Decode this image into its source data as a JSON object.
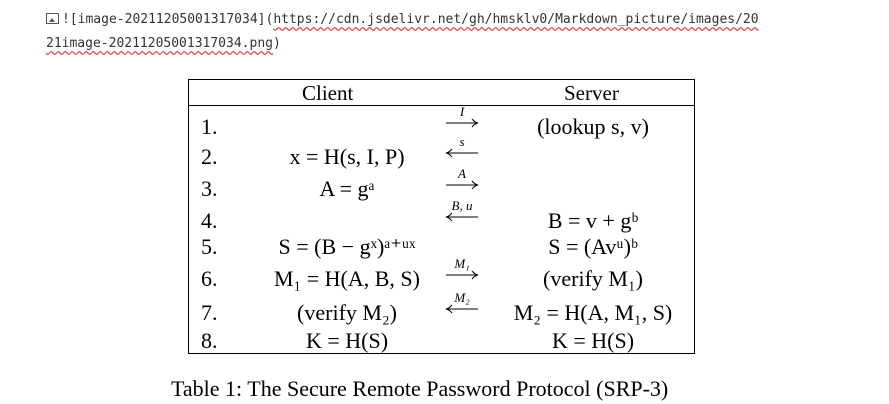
{
  "markdown": {
    "icon": "broken-image-icon",
    "line1_prefix": "![image-20211205001317034](",
    "line1_link": "https://cdn.jsdelivr.net/gh/hmsklv0/Markdown_picture/images/20",
    "line2_link": "21image-20211205001317034.png",
    "line2_suffix": ")"
  },
  "table": {
    "headers": {
      "client": "Client",
      "server": "Server"
    },
    "rows": [
      {
        "num": "1.",
        "client": "",
        "arrow_label": "I",
        "direction": "right",
        "server": "(lookup s, v)"
      },
      {
        "num": "2.",
        "client": "x = H(s, I, P)",
        "arrow_label": "s",
        "direction": "left",
        "server": ""
      },
      {
        "num": "3.",
        "client": "A = gᵃ",
        "arrow_label": "A",
        "direction": "right",
        "server": ""
      },
      {
        "num": "4.",
        "client": "",
        "arrow_label": "B, u",
        "direction": "left",
        "server": "B = v + gᵇ"
      },
      {
        "num": "5.",
        "client": "S = (B − gˣ)ᵃ⁺ᵘˣ",
        "arrow_label": "",
        "direction": "none",
        "server": "S = (Avᵘ)ᵇ"
      },
      {
        "num": "6.",
        "client": "M₁ = H(A, B, S)",
        "arrow_label": "M₁",
        "direction": "right",
        "server": "(verify M₁)"
      },
      {
        "num": "7.",
        "client": "(verify M₂)",
        "arrow_label": "M₂",
        "direction": "left",
        "server": "M₂ = H(A, M₁, S)"
      },
      {
        "num": "8.",
        "client": "K = H(S)",
        "arrow_label": "",
        "direction": "none",
        "server": "K = H(S)"
      }
    ]
  },
  "caption": "Table 1: The Secure Remote Password Protocol (SRP-3)"
}
